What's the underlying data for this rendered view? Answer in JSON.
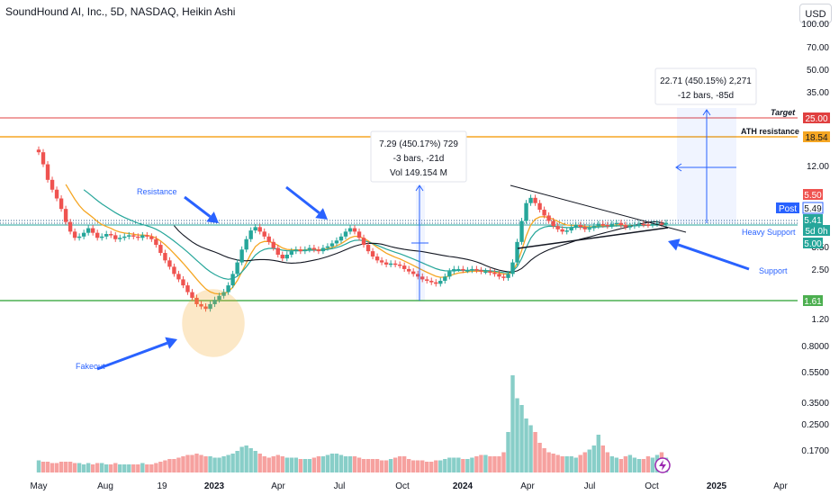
{
  "header": {
    "title": "SoundHound AI, Inc., 5D, NASDAQ, Heikin Ashi",
    "currency_button": "USD"
  },
  "colors": {
    "bull": "#26a69a",
    "bear": "#ef5350",
    "target": "#e04040",
    "ath": "#f5a623",
    "support": "#4caf50",
    "accent": "#2962ff",
    "ema_fast": "#f5a623",
    "ema_mid": "#26a69a",
    "sma_slow": "#131722"
  },
  "chart_data": {
    "type": "candlestick",
    "chart_style": "Heikin Ashi",
    "y_scale": "log",
    "ylim": [
      0.8,
      100
    ],
    "price_axis_labels": [
      "100.00",
      "70.00",
      "50.00",
      "35.00",
      "25.00",
      "18.54",
      "12.00",
      "5.50",
      "5.49",
      "5.41",
      "5.00",
      "3.50",
      "2.50",
      "1.61",
      "1.20",
      "0.8000",
      "0.5500",
      "0.3500",
      "0.2500",
      "0.1700"
    ],
    "time_labels": [
      "May",
      "Aug",
      "19",
      "2023",
      "Apr",
      "Jul",
      "Oct",
      "2024",
      "Apr",
      "Jul",
      "Oct",
      "2025",
      "Apr"
    ],
    "current_price_tags": [
      {
        "label": "Post",
        "value": "5.49"
      },
      {
        "label": "",
        "value": "5.41"
      },
      {
        "label": "",
        "value": "5d 0h"
      },
      {
        "label": "",
        "value": "5.00"
      },
      {
        "label": "",
        "value": "5.50"
      }
    ],
    "horizontal_levels": [
      {
        "name": "Target",
        "value": 25.0,
        "label": "25.00"
      },
      {
        "name": "ATH resistance",
        "value": 18.54,
        "label": "18.54"
      },
      {
        "name": "Heavy Support",
        "value": 5.0,
        "label": ""
      },
      {
        "name": "",
        "value": 1.61,
        "label": "1.61"
      }
    ],
    "annotations": [
      "Resistance",
      "Fakeout",
      "Heavy Support",
      "Support",
      "Target",
      "ATH resistance"
    ],
    "measure_boxes": [
      {
        "lines": [
          "7.29 (450.17%) 729",
          "-3 bars, -21d",
          "Vol 149.154 M"
        ]
      },
      {
        "lines": [
          "22.71 (450.15%) 2,271",
          "-12 bars, -85d"
        ]
      }
    ],
    "price_path": [
      20,
      16,
      12,
      10,
      8.5,
      7,
      5.5,
      4.6,
      4.1,
      4.2,
      4.5,
      4.9,
      4.5,
      4.1,
      4.2,
      4.4,
      4.3,
      4.0,
      4.1,
      4.2,
      4.3,
      4.2,
      4.1,
      4.3,
      4.2,
      4.0,
      3.6,
      3.1,
      2.7,
      2.4,
      2.1,
      1.9,
      1.7,
      1.5,
      1.35,
      1.2,
      1.15,
      1.1,
      1.2,
      1.3,
      1.4,
      1.5,
      1.7,
      2.1,
      2.6,
      3.3,
      4.0,
      4.7,
      5.0,
      4.6,
      4.2,
      3.8,
      3.4,
      3.0,
      2.8,
      3.0,
      3.2,
      3.3,
      3.2,
      3.3,
      3.4,
      3.3,
      3.2,
      3.4,
      3.5,
      3.7,
      3.9,
      4.2,
      4.6,
      4.9,
      4.6,
      4.1,
      3.6,
      3.2,
      2.9,
      2.7,
      2.6,
      2.5,
      2.55,
      2.5,
      2.45,
      2.3,
      2.2,
      2.1,
      2.0,
      1.9,
      1.85,
      1.8,
      1.75,
      1.85,
      2.0,
      2.2,
      2.3,
      2.3,
      2.25,
      2.25,
      2.3,
      2.25,
      2.2,
      2.2,
      2.15,
      2.1,
      2.0,
      1.95,
      2.1,
      2.6,
      3.8,
      5.6,
      7.8,
      8.6,
      7.8,
      6.9,
      6.2,
      5.6,
      5.1,
      4.8,
      4.6,
      4.7,
      5.0,
      5.2,
      5.0,
      4.8,
      4.9,
      5.1,
      5.3,
      5.2,
      5.1,
      5.3,
      5.4,
      5.2,
      5.0,
      5.1,
      5.2,
      5.3,
      5.25,
      5.2,
      5.3,
      5.35,
      5.3,
      5.41
    ],
    "volume_path": [
      0.09,
      0.08,
      0.08,
      0.07,
      0.07,
      0.08,
      0.08,
      0.08,
      0.07,
      0.07,
      0.06,
      0.07,
      0.06,
      0.07,
      0.07,
      0.06,
      0.06,
      0.07,
      0.06,
      0.06,
      0.06,
      0.06,
      0.06,
      0.07,
      0.06,
      0.06,
      0.07,
      0.08,
      0.09,
      0.1,
      0.1,
      0.11,
      0.12,
      0.13,
      0.13,
      0.14,
      0.13,
      0.12,
      0.12,
      0.11,
      0.11,
      0.12,
      0.13,
      0.14,
      0.16,
      0.19,
      0.2,
      0.18,
      0.16,
      0.14,
      0.12,
      0.11,
      0.12,
      0.13,
      0.12,
      0.11,
      0.11,
      0.11,
      0.1,
      0.1,
      0.1,
      0.11,
      0.12,
      0.12,
      0.13,
      0.14,
      0.14,
      0.13,
      0.12,
      0.12,
      0.12,
      0.11,
      0.1,
      0.1,
      0.1,
      0.1,
      0.09,
      0.09,
      0.1,
      0.11,
      0.12,
      0.12,
      0.1,
      0.09,
      0.09,
      0.09,
      0.08,
      0.08,
      0.09,
      0.09,
      0.1,
      0.11,
      0.11,
      0.11,
      0.1,
      0.1,
      0.11,
      0.12,
      0.13,
      0.13,
      0.12,
      0.12,
      0.12,
      0.15,
      0.3,
      0.72,
      0.55,
      0.5,
      0.4,
      0.35,
      0.3,
      0.22,
      0.18,
      0.15,
      0.14,
      0.13,
      0.12,
      0.12,
      0.12,
      0.11,
      0.13,
      0.15,
      0.17,
      0.2,
      0.28,
      0.2,
      0.15,
      0.12,
      0.11,
      0.1,
      0.12,
      0.13,
      0.11,
      0.1,
      0.1,
      0.12,
      0.11,
      0.13,
      0.15,
      0.11
    ]
  }
}
